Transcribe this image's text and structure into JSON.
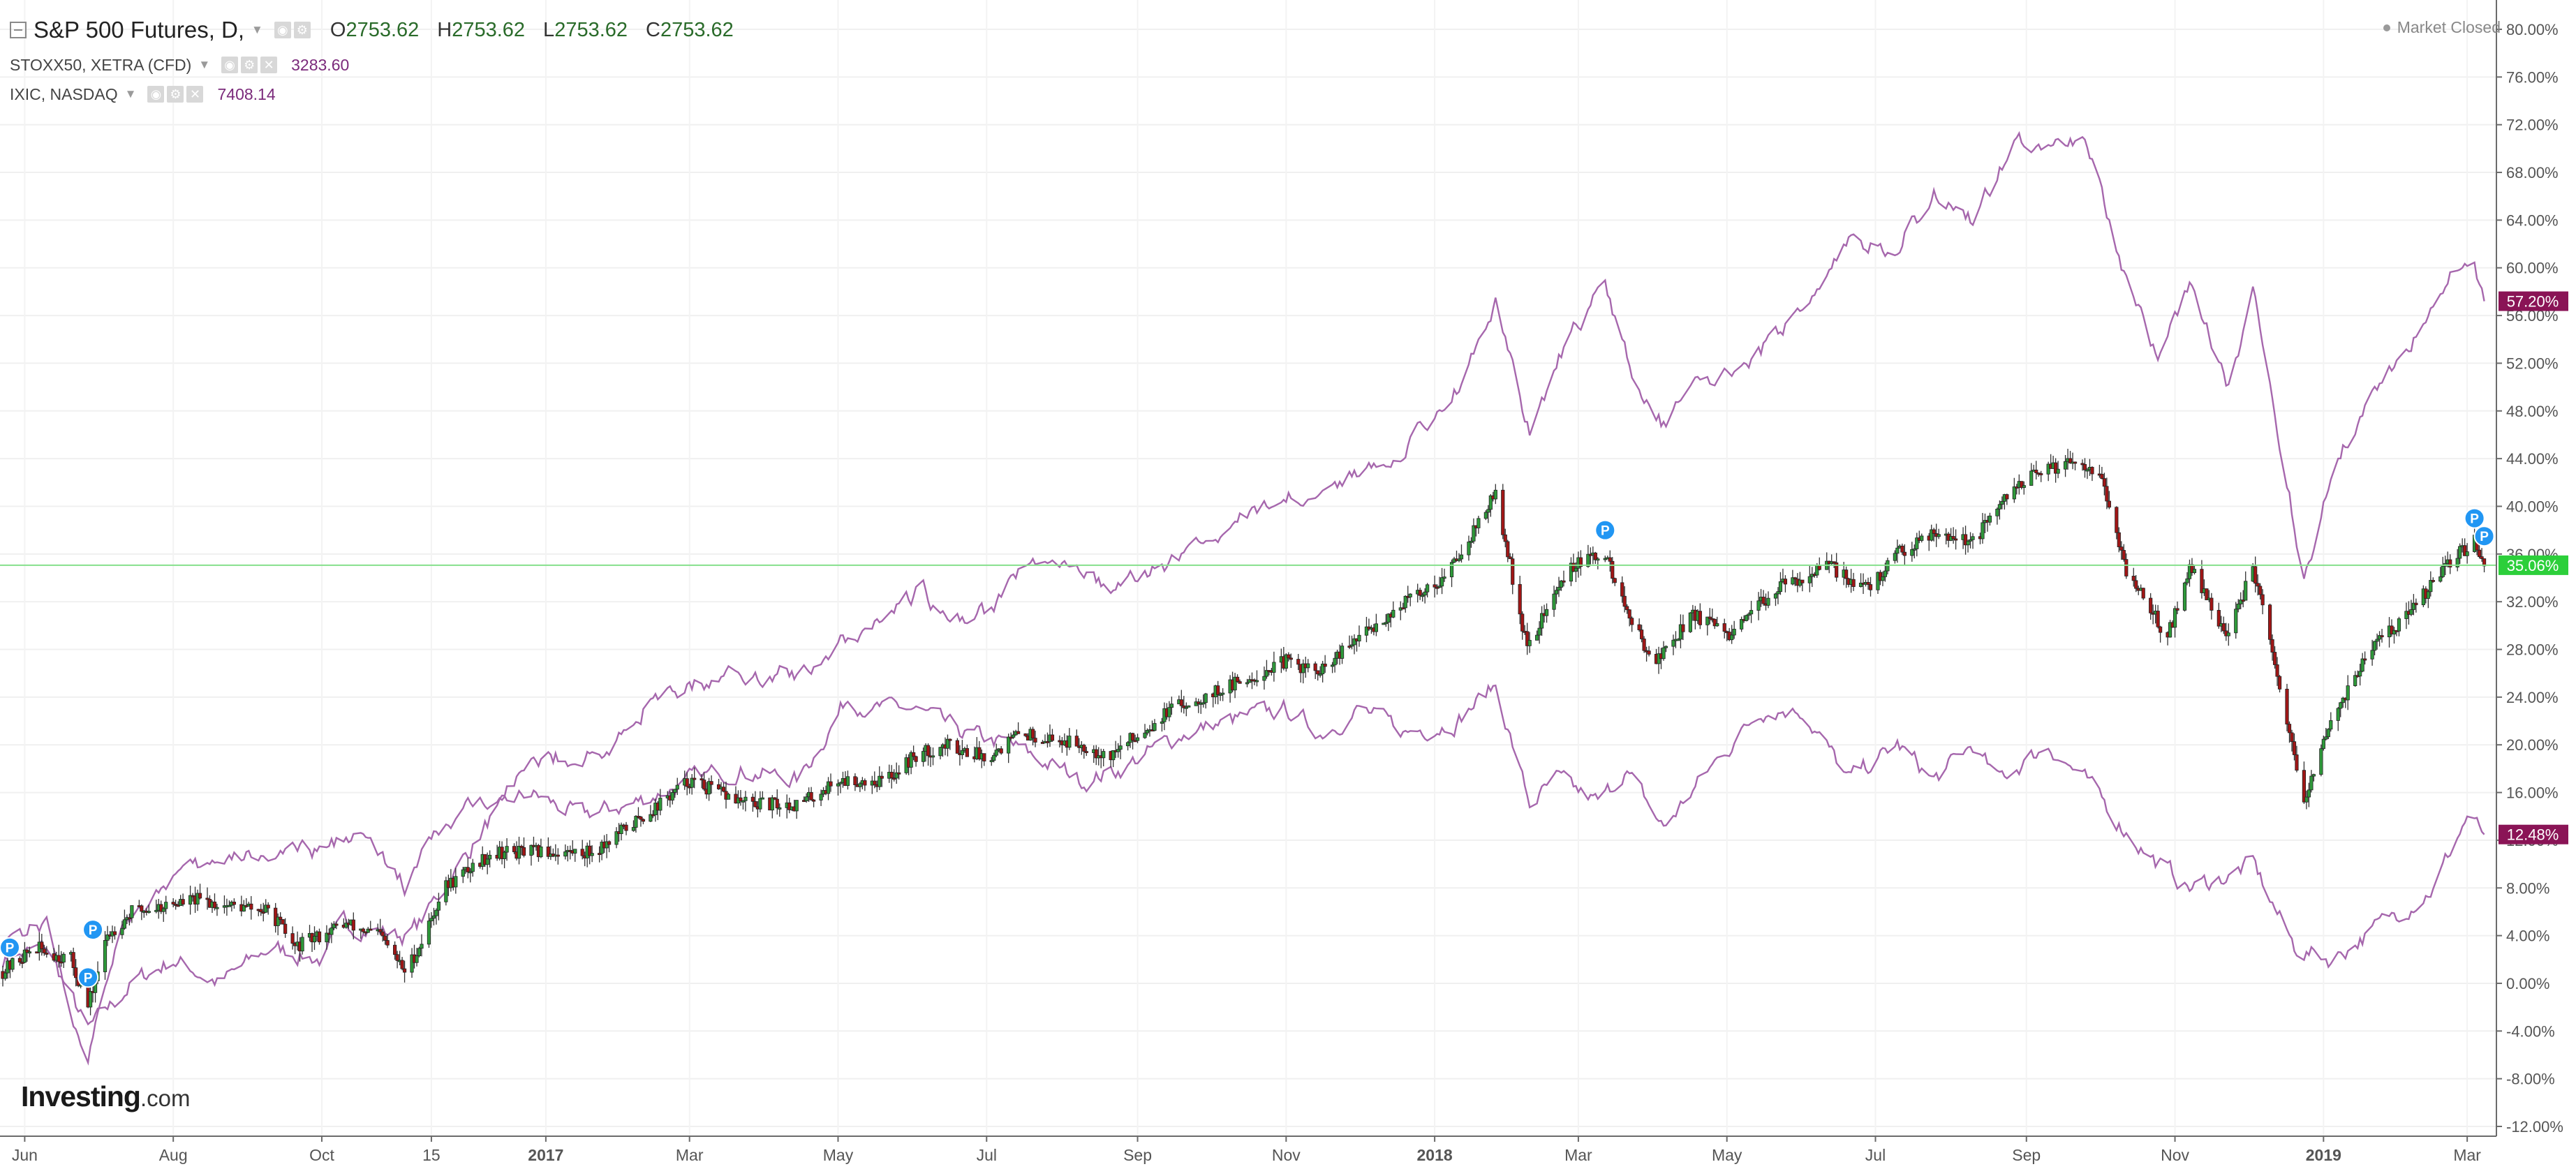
{
  "legend": {
    "main": {
      "title": "S&P 500 Futures, D,",
      "o_label": "O",
      "o": "2753.62",
      "h_label": "H",
      "h": "2753.62",
      "l_label": "L",
      "l": "2753.62",
      "c_label": "C",
      "c": "2753.62"
    },
    "compare": [
      {
        "title": "STOXX50, XETRA (CFD)",
        "value": "3283.60"
      },
      {
        "title": "IXIC, NASDAQ",
        "value": "7408.14"
      }
    ]
  },
  "status": "Market Closed",
  "logo": {
    "main": "Investing",
    "suffix": ".com"
  },
  "colors": {
    "up": "#2e9a3a",
    "down": "#a11616",
    "compare": "#a667ad",
    "badge_compare": "#8a1456",
    "badge_main": "#2ccf3a",
    "hline": "#86e08c",
    "marker": "#2196f3"
  },
  "chart_data": {
    "type": "candlestick+line",
    "y_axis": {
      "unit": "%",
      "range": [
        -12,
        80
      ],
      "ticks": [
        "80.00%",
        "76.00%",
        "72.00%",
        "68.00%",
        "64.00%",
        "60.00%",
        "56.00%",
        "52.00%",
        "48.00%",
        "44.00%",
        "40.00%",
        "36.00%",
        "32.00%",
        "28.00%",
        "24.00%",
        "20.00%",
        "16.00%",
        "12.00%",
        "8.00%",
        "4.00%",
        "0.00%",
        "-4.00%",
        "-8.00%",
        "-12.00%"
      ]
    },
    "x_axis": {
      "range": [
        "2016-05-23",
        "2019-03-13"
      ],
      "ticks": [
        {
          "label": "Jun",
          "date": "2016-06-01",
          "bold": false
        },
        {
          "label": "Aug",
          "date": "2016-08-01",
          "bold": false
        },
        {
          "label": "Oct",
          "date": "2016-10-01",
          "bold": false
        },
        {
          "label": "15",
          "date": "2016-11-15",
          "bold": false
        },
        {
          "label": "2017",
          "date": "2017-01-01",
          "bold": true
        },
        {
          "label": "Mar",
          "date": "2017-03-01",
          "bold": false
        },
        {
          "label": "May",
          "date": "2017-05-01",
          "bold": false
        },
        {
          "label": "Jul",
          "date": "2017-07-01",
          "bold": false
        },
        {
          "label": "Sep",
          "date": "2017-09-01",
          "bold": false
        },
        {
          "label": "Nov",
          "date": "2017-11-01",
          "bold": false
        },
        {
          "label": "2018",
          "date": "2018-01-01",
          "bold": true
        },
        {
          "label": "Mar",
          "date": "2018-03-01",
          "bold": false
        },
        {
          "label": "May",
          "date": "2018-05-01",
          "bold": false
        },
        {
          "label": "Jul",
          "date": "2018-07-01",
          "bold": false
        },
        {
          "label": "Sep",
          "date": "2018-09-01",
          "bold": false
        },
        {
          "label": "Nov",
          "date": "2018-11-01",
          "bold": false
        },
        {
          "label": "2019",
          "date": "2019-01-01",
          "bold": true
        },
        {
          "label": "Mar",
          "date": "2019-03-01",
          "bold": false
        }
      ]
    },
    "series": [
      {
        "name": "S&P 500 Futures",
        "style": "candles",
        "last_label": "35.06%",
        "last": 35.06,
        "points": [
          [
            "2016-05-23",
            1
          ],
          [
            "2016-06-05",
            3
          ],
          [
            "2016-06-20",
            2
          ],
          [
            "2016-06-27",
            -2
          ],
          [
            "2016-07-05",
            4
          ],
          [
            "2016-07-15",
            6
          ],
          [
            "2016-08-10",
            7
          ],
          [
            "2016-09-10",
            6
          ],
          [
            "2016-09-20",
            3
          ],
          [
            "2016-10-10",
            5
          ],
          [
            "2016-10-25",
            4
          ],
          [
            "2016-11-04",
            1
          ],
          [
            "2016-11-10",
            3
          ],
          [
            "2016-11-20",
            8
          ],
          [
            "2016-12-10",
            11
          ],
          [
            "2016-12-20",
            11
          ],
          [
            "2017-01-20",
            11
          ],
          [
            "2017-02-10",
            14
          ],
          [
            "2017-03-01",
            17
          ],
          [
            "2017-03-25",
            15
          ],
          [
            "2017-04-15",
            15
          ],
          [
            "2017-05-01",
            17
          ],
          [
            "2017-05-20",
            17
          ],
          [
            "2017-06-01",
            19
          ],
          [
            "2017-06-15",
            20
          ],
          [
            "2017-07-01",
            19
          ],
          [
            "2017-07-15",
            21
          ],
          [
            "2017-08-10",
            20
          ],
          [
            "2017-08-20",
            19
          ],
          [
            "2017-09-15",
            23
          ],
          [
            "2017-10-10",
            25
          ],
          [
            "2017-11-01",
            27
          ],
          [
            "2017-11-15",
            26
          ],
          [
            "2017-12-01",
            29
          ],
          [
            "2017-12-20",
            32
          ],
          [
            "2018-01-05",
            34
          ],
          [
            "2018-01-26",
            41
          ],
          [
            "2018-02-08",
            28
          ],
          [
            "2018-02-15",
            31
          ],
          [
            "2018-02-26",
            35
          ],
          [
            "2018-03-12",
            36
          ],
          [
            "2018-03-23",
            30
          ],
          [
            "2018-04-02",
            27
          ],
          [
            "2018-04-17",
            31
          ],
          [
            "2018-05-03",
            29
          ],
          [
            "2018-05-20",
            33
          ],
          [
            "2018-06-12",
            35
          ],
          [
            "2018-06-28",
            33
          ],
          [
            "2018-07-10",
            36
          ],
          [
            "2018-07-25",
            38
          ],
          [
            "2018-08-10",
            37
          ],
          [
            "2018-08-29",
            42
          ],
          [
            "2018-09-20",
            44
          ],
          [
            "2018-10-01",
            43
          ],
          [
            "2018-10-11",
            35
          ],
          [
            "2018-10-29",
            29
          ],
          [
            "2018-11-07",
            35
          ],
          [
            "2018-11-23",
            29
          ],
          [
            "2018-12-03",
            35
          ],
          [
            "2018-12-24",
            15
          ],
          [
            "2019-01-04",
            22
          ],
          [
            "2019-01-20",
            28
          ],
          [
            "2019-02-05",
            31
          ],
          [
            "2019-02-25",
            36
          ],
          [
            "2019-03-04",
            37
          ],
          [
            "2019-03-08",
            35
          ]
        ]
      },
      {
        "name": "STOXX50, XETRA (CFD)",
        "style": "line",
        "last_label": "12.48%",
        "last": 12.48,
        "points": [
          [
            "2016-05-23",
            2
          ],
          [
            "2016-06-10",
            3
          ],
          [
            "2016-06-27",
            -4
          ],
          [
            "2016-07-15",
            0
          ],
          [
            "2016-08-01",
            2
          ],
          [
            "2016-08-20",
            0
          ],
          [
            "2016-09-10",
            3
          ],
          [
            "2016-10-01",
            2
          ],
          [
            "2016-10-10",
            5
          ],
          [
            "2016-11-04",
            4
          ],
          [
            "2016-11-10",
            5
          ],
          [
            "2016-12-10",
            14
          ],
          [
            "2016-12-25",
            16
          ],
          [
            "2017-01-15",
            14
          ],
          [
            "2017-02-05",
            15
          ],
          [
            "2017-03-01",
            17
          ],
          [
            "2017-03-20",
            18
          ],
          [
            "2017-04-15",
            17
          ],
          [
            "2017-05-05",
            24
          ],
          [
            "2017-05-15",
            23
          ],
          [
            "2017-06-01",
            23
          ],
          [
            "2017-06-20",
            21
          ],
          [
            "2017-07-10",
            20
          ],
          [
            "2017-07-20",
            19
          ],
          [
            "2017-08-10",
            17
          ],
          [
            "2017-08-25",
            18
          ],
          [
            "2017-09-20",
            21
          ],
          [
            "2017-10-10",
            22
          ],
          [
            "2017-11-01",
            23
          ],
          [
            "2017-11-15",
            21
          ],
          [
            "2017-12-01",
            23
          ],
          [
            "2017-12-20",
            21
          ],
          [
            "2018-01-10",
            22
          ],
          [
            "2018-01-26",
            25
          ],
          [
            "2018-02-09",
            15
          ],
          [
            "2018-02-20",
            17
          ],
          [
            "2018-03-10",
            15
          ],
          [
            "2018-03-20",
            18
          ],
          [
            "2018-04-05",
            13
          ],
          [
            "2018-04-20",
            17
          ],
          [
            "2018-05-15",
            23
          ],
          [
            "2018-06-01",
            23
          ],
          [
            "2018-06-20",
            17
          ],
          [
            "2018-07-10",
            20
          ],
          [
            "2018-07-25",
            17
          ],
          [
            "2018-08-10",
            20
          ],
          [
            "2018-08-20",
            17
          ],
          [
            "2018-09-10",
            20
          ],
          [
            "2018-09-25",
            17
          ],
          [
            "2018-10-11",
            13
          ],
          [
            "2018-10-25",
            10
          ],
          [
            "2018-11-07",
            8
          ],
          [
            "2018-11-23",
            9
          ],
          [
            "2018-12-03",
            10
          ],
          [
            "2018-12-20",
            3
          ],
          [
            "2019-01-04",
            2
          ],
          [
            "2019-01-25",
            5
          ],
          [
            "2019-02-15",
            8
          ],
          [
            "2019-03-01",
            14
          ],
          [
            "2019-03-08",
            12.48
          ]
        ]
      },
      {
        "name": "IXIC, NASDAQ",
        "style": "line",
        "last_label": "57.20%",
        "last": 57.2,
        "points": [
          [
            "2016-05-23",
            4
          ],
          [
            "2016-06-10",
            5
          ],
          [
            "2016-06-27",
            -7
          ],
          [
            "2016-07-10",
            5
          ],
          [
            "2016-08-01",
            9
          ],
          [
            "2016-08-20",
            10
          ],
          [
            "2016-09-10",
            11
          ],
          [
            "2016-10-01",
            11
          ],
          [
            "2016-10-15",
            13
          ],
          [
            "2016-11-04",
            8
          ],
          [
            "2016-11-15",
            12
          ],
          [
            "2016-12-10",
            16
          ],
          [
            "2017-01-01",
            19
          ],
          [
            "2017-01-25",
            19
          ],
          [
            "2017-02-10",
            23
          ],
          [
            "2017-03-01",
            25
          ],
          [
            "2017-03-20",
            26
          ],
          [
            "2017-04-15",
            26
          ],
          [
            "2017-05-05",
            29
          ],
          [
            "2017-05-20",
            31
          ],
          [
            "2017-06-05",
            33
          ],
          [
            "2017-06-15",
            30
          ],
          [
            "2017-07-01",
            31
          ],
          [
            "2017-07-20",
            36
          ],
          [
            "2017-08-10",
            34
          ],
          [
            "2017-08-25",
            33
          ],
          [
            "2017-09-20",
            36
          ],
          [
            "2017-10-15",
            39
          ],
          [
            "2017-11-01",
            41
          ],
          [
            "2017-11-15",
            41
          ],
          [
            "2017-12-01",
            43
          ],
          [
            "2017-12-20",
            45
          ],
          [
            "2018-01-10",
            50
          ],
          [
            "2018-01-26",
            57
          ],
          [
            "2018-02-09",
            46
          ],
          [
            "2018-02-20",
            52
          ],
          [
            "2018-03-12",
            59
          ],
          [
            "2018-03-23",
            51
          ],
          [
            "2018-04-05",
            47
          ],
          [
            "2018-04-20",
            50
          ],
          [
            "2018-05-15",
            53
          ],
          [
            "2018-06-01",
            57
          ],
          [
            "2018-06-20",
            62
          ],
          [
            "2018-07-10",
            62
          ],
          [
            "2018-07-25",
            66
          ],
          [
            "2018-08-10",
            64
          ],
          [
            "2018-08-29",
            71
          ],
          [
            "2018-09-10",
            70
          ],
          [
            "2018-09-25",
            71
          ],
          [
            "2018-10-11",
            60
          ],
          [
            "2018-10-25",
            52
          ],
          [
            "2018-11-07",
            59
          ],
          [
            "2018-11-23",
            50
          ],
          [
            "2018-12-03",
            58
          ],
          [
            "2018-12-24",
            34
          ],
          [
            "2019-01-04",
            42
          ],
          [
            "2019-01-20",
            50
          ],
          [
            "2019-02-05",
            53
          ],
          [
            "2019-02-25",
            60
          ],
          [
            "2019-03-04",
            61
          ],
          [
            "2019-03-08",
            57.2
          ]
        ]
      }
    ],
    "hline": {
      "value": 35.06
    },
    "markers": [
      {
        "label": "P",
        "date": "2016-05-23",
        "value": 3
      },
      {
        "label": "P",
        "date": "2016-06-27",
        "value": 0.5
      },
      {
        "label": "P",
        "date": "2016-06-29",
        "value": 4.5
      },
      {
        "label": "P",
        "date": "2018-03-12",
        "value": 38
      },
      {
        "label": "P",
        "date": "2019-03-04",
        "value": 39
      },
      {
        "label": "P",
        "date": "2019-03-08",
        "value": 37.5
      }
    ]
  }
}
